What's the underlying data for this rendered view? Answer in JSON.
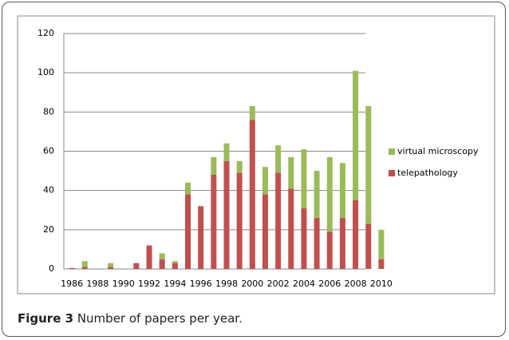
{
  "chart_data": {
    "type": "bar",
    "stacked": true,
    "categories": [
      "1986",
      null,
      "1988",
      null,
      "1990",
      null,
      "1992",
      null,
      "1994",
      null,
      "1996",
      null,
      "1998",
      null,
      "2000",
      null,
      "2002",
      null,
      "2004",
      null,
      "2006",
      null,
      "2008",
      null,
      "2010"
    ],
    "series": [
      {
        "name": "telepathology",
        "color": "#c0504d",
        "values": [
          0.5,
          1,
          0,
          1,
          0,
          3,
          12,
          5,
          3,
          38,
          32,
          48,
          55,
          49,
          76,
          38,
          49,
          41,
          31,
          26,
          19,
          26,
          35,
          23,
          5
        ]
      },
      {
        "name": "virtual microscopy",
        "color": "#9bbb59",
        "values": [
          0,
          3,
          0,
          2,
          0,
          0,
          0,
          3,
          1,
          6,
          0,
          9,
          9,
          6,
          7,
          14,
          14,
          16,
          30,
          24,
          38,
          28,
          66,
          60,
          15
        ]
      }
    ],
    "ylim": [
      0,
      120
    ],
    "yticks": [
      0,
      20,
      40,
      60,
      80,
      100,
      120
    ],
    "grid": true,
    "legend": "right"
  },
  "caption": {
    "label": "Figure 3",
    "text": "Number of papers per year."
  }
}
